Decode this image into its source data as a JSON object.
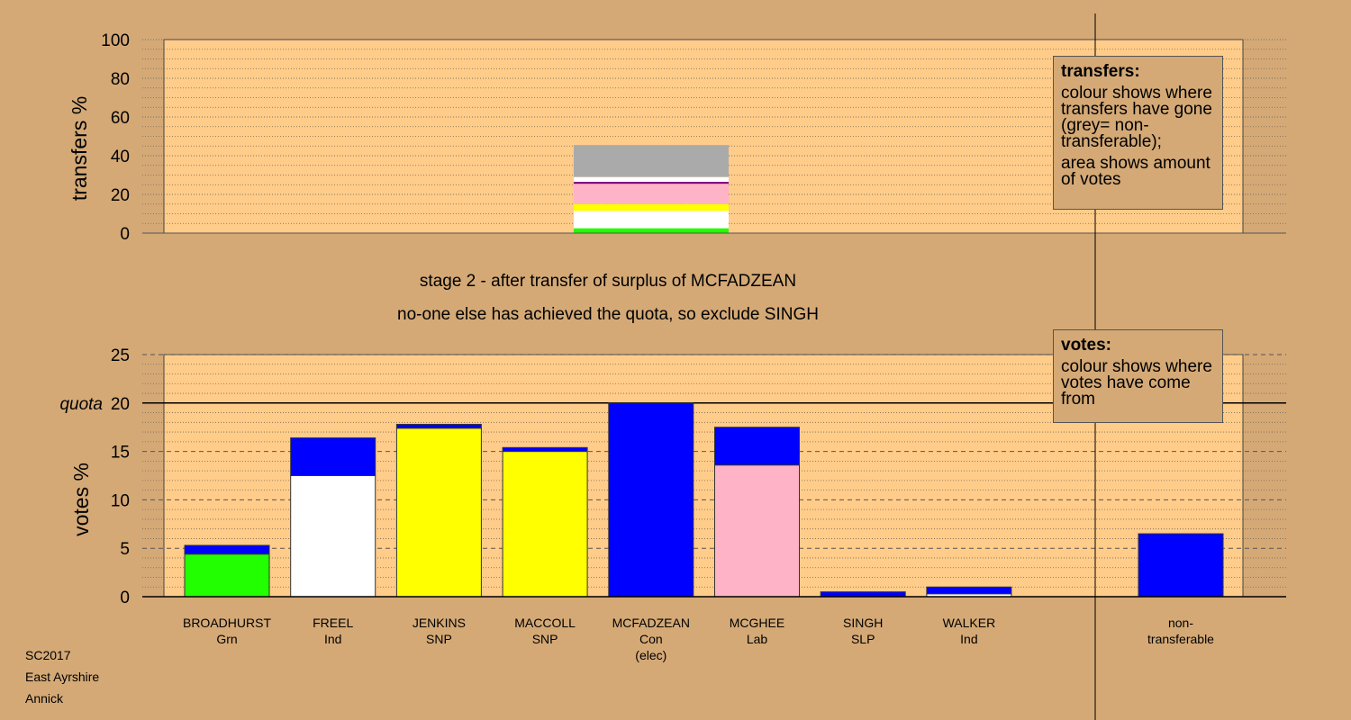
{
  "stage_line1": "stage 2 - after transfer of surplus of MCFADZEAN",
  "stage_line2": "no-one else has achieved the quota, so exclude SINGH",
  "legend_transfers": {
    "title": "transfers:",
    "line1": "colour shows where transfers have gone (grey= non-transferable);",
    "line2": "area shows amount of votes"
  },
  "legend_votes": {
    "title": "votes:",
    "line1": "colour shows where votes have come from"
  },
  "corner": {
    "line1": "SC2017",
    "line2": "East Ayrshire",
    "line3": "Annick"
  },
  "colors": {
    "Grn": "#22ff00",
    "Ind_FREEL": "#ffffff",
    "SNP": "#ffff00",
    "Con": "#0000ff",
    "Lab": "#ffb3c6",
    "SLP": "#800080",
    "Ind_WALKER": "#ffffff",
    "nontransferable": "#aaaaaa",
    "plot_bg": "#ffcc8a",
    "page_bg": "#d4a976"
  },
  "chart_data": [
    {
      "type": "bar",
      "title": "",
      "ylabel": "transfers %",
      "ylim": [
        0,
        100
      ],
      "yticks": [
        0,
        20,
        40,
        60,
        80,
        100
      ],
      "bar_label": "MCFADZEAN",
      "segments": [
        {
          "source": "BROADHURST",
          "value": 2.5,
          "color": "#22ff00"
        },
        {
          "source": "FREEL",
          "value": 9.0,
          "color": "#ffffff"
        },
        {
          "source": "JENKINS",
          "value": 2.0,
          "color": "#ffff00"
        },
        {
          "source": "MACCOLL",
          "value": 1.5,
          "color": "#ffff00"
        },
        {
          "source": "MCGHEE",
          "value": 10.5,
          "color": "#ffb3c6"
        },
        {
          "source": "SINGH",
          "value": 1.0,
          "color": "#800080"
        },
        {
          "source": "WALKER",
          "value": 2.5,
          "color": "#ffffff"
        },
        {
          "source": "non-transferable",
          "value": 16.5,
          "color": "#aaaaaa"
        }
      ]
    },
    {
      "type": "bar",
      "stacked": true,
      "ylabel": "votes %",
      "ylim": [
        0,
        25
      ],
      "yticks": [
        0,
        5,
        10,
        15,
        20,
        25
      ],
      "quota": 20,
      "quota_label": "quota",
      "categories": [
        {
          "name": "BROADHURST",
          "party": "Grn",
          "extra": "",
          "base": 4.4,
          "base_color": "#22ff00",
          "transfer": 0.9
        },
        {
          "name": "FREEL",
          "party": "Ind",
          "extra": "",
          "base": 12.5,
          "base_color": "#ffffff",
          "transfer": 3.9
        },
        {
          "name": "JENKINS",
          "party": "SNP",
          "extra": "",
          "base": 17.4,
          "base_color": "#ffff00",
          "transfer": 0.4
        },
        {
          "name": "MACCOLL",
          "party": "SNP",
          "extra": "",
          "base": 15.0,
          "base_color": "#ffff00",
          "transfer": 0.4
        },
        {
          "name": "MCFADZEAN",
          "party": "Con",
          "extra": "(elec)",
          "base": 20.0,
          "base_color": "#0000ff",
          "transfer": 0
        },
        {
          "name": "MCGHEE",
          "party": "Lab",
          "extra": "",
          "base": 13.6,
          "base_color": "#ffb3c6",
          "transfer": 3.9
        },
        {
          "name": "SINGH",
          "party": "SLP",
          "extra": "",
          "base": 0.0,
          "base_color": "#800080",
          "transfer": 0.5
        },
        {
          "name": "WALKER",
          "party": "Ind",
          "extra": "",
          "base": 0.3,
          "base_color": "#ffffff",
          "transfer": 0.7
        }
      ],
      "nontransferable": {
        "label1": "non-",
        "label2": "transferable",
        "value": 6.5,
        "color": "#0000ff"
      },
      "transfer_color": "#0000ff"
    }
  ]
}
